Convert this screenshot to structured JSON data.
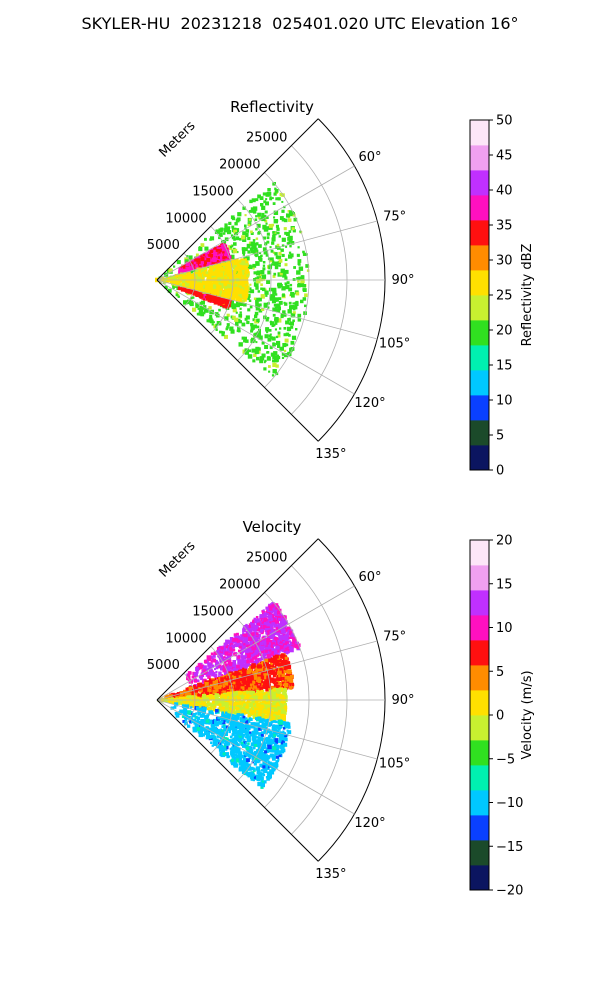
{
  "figure_title": "SKYLER-HU  20231218  025401.020 UTC Elevation 16°",
  "chart_data": [
    {
      "type": "heatmap",
      "plot": "polar-sector",
      "title": "Reflectivity",
      "radial_axis_label": "Meters",
      "radial_ticks": [
        "5000",
        "10000",
        "15000",
        "20000",
        "25000"
      ],
      "angle_ticks": [
        "60°",
        "75°",
        "90°",
        "105°",
        "120°",
        "135°"
      ],
      "angle_range_deg": [
        45,
        135
      ],
      "range_max_m": 30000,
      "colorbar": {
        "label": "Reflectivity dBZ",
        "ticks": [
          "0",
          "5",
          "10",
          "15",
          "20",
          "25",
          "30",
          "35",
          "40",
          "45",
          "50"
        ],
        "min": 0,
        "max": 50,
        "colors": [
          "#0b1560",
          "#1b4a2a",
          "#0a40ff",
          "#00c8ff",
          "#00f0b0",
          "#30e020",
          "#c8f030",
          "#ffe000",
          "#ff8c00",
          "#ff1010",
          "#ff10c0",
          "#c030ff",
          "#f0a0f0",
          "#fde6f8"
        ]
      },
      "echo_regions": [
        {
          "azimuth": [
            50,
            130
          ],
          "range_m": [
            0,
            20000
          ],
          "value": 20
        },
        {
          "azimuth": [
            62,
            73
          ],
          "range_m": [
            3000,
            10000
          ],
          "value": 36
        },
        {
          "azimuth": [
            100,
            111
          ],
          "range_m": [
            3000,
            10000
          ],
          "value": 34
        },
        {
          "azimuth": [
            76,
            104
          ],
          "range_m": [
            0,
            12000
          ],
          "value": 26
        }
      ]
    },
    {
      "type": "heatmap",
      "plot": "polar-sector",
      "title": "Velocity",
      "radial_axis_label": "Meters",
      "radial_ticks": [
        "5000",
        "10000",
        "15000",
        "20000",
        "25000"
      ],
      "angle_ticks": [
        "60°",
        "75°",
        "90°",
        "105°",
        "120°",
        "135°"
      ],
      "angle_range_deg": [
        45,
        135
      ],
      "range_max_m": 30000,
      "colorbar": {
        "label": "Velocity (m/s)",
        "ticks": [
          "−20",
          "−15",
          "−10",
          "−5",
          "0",
          "5",
          "10",
          "15",
          "20"
        ],
        "min": -20,
        "max": 20,
        "colors": [
          "#0b1560",
          "#1b4a2a",
          "#0a40ff",
          "#00c8ff",
          "#00f0b0",
          "#30e020",
          "#c8f030",
          "#ffe000",
          "#ff8c00",
          "#ff1010",
          "#ff10c0",
          "#c030ff",
          "#f0a0f0",
          "#fde6f8"
        ]
      },
      "echo_regions": [
        {
          "azimuth": [
            50,
            70
          ],
          "range_m": [
            4000,
            20000
          ],
          "value": 12
        },
        {
          "azimuth": [
            70,
            85
          ],
          "range_m": [
            0,
            18000
          ],
          "value": 6
        },
        {
          "azimuth": [
            85,
            100
          ],
          "range_m": [
            0,
            17000
          ],
          "value": 0
        },
        {
          "azimuth": [
            100,
            130
          ],
          "range_m": [
            2000,
            18000
          ],
          "value": -10
        }
      ]
    }
  ]
}
